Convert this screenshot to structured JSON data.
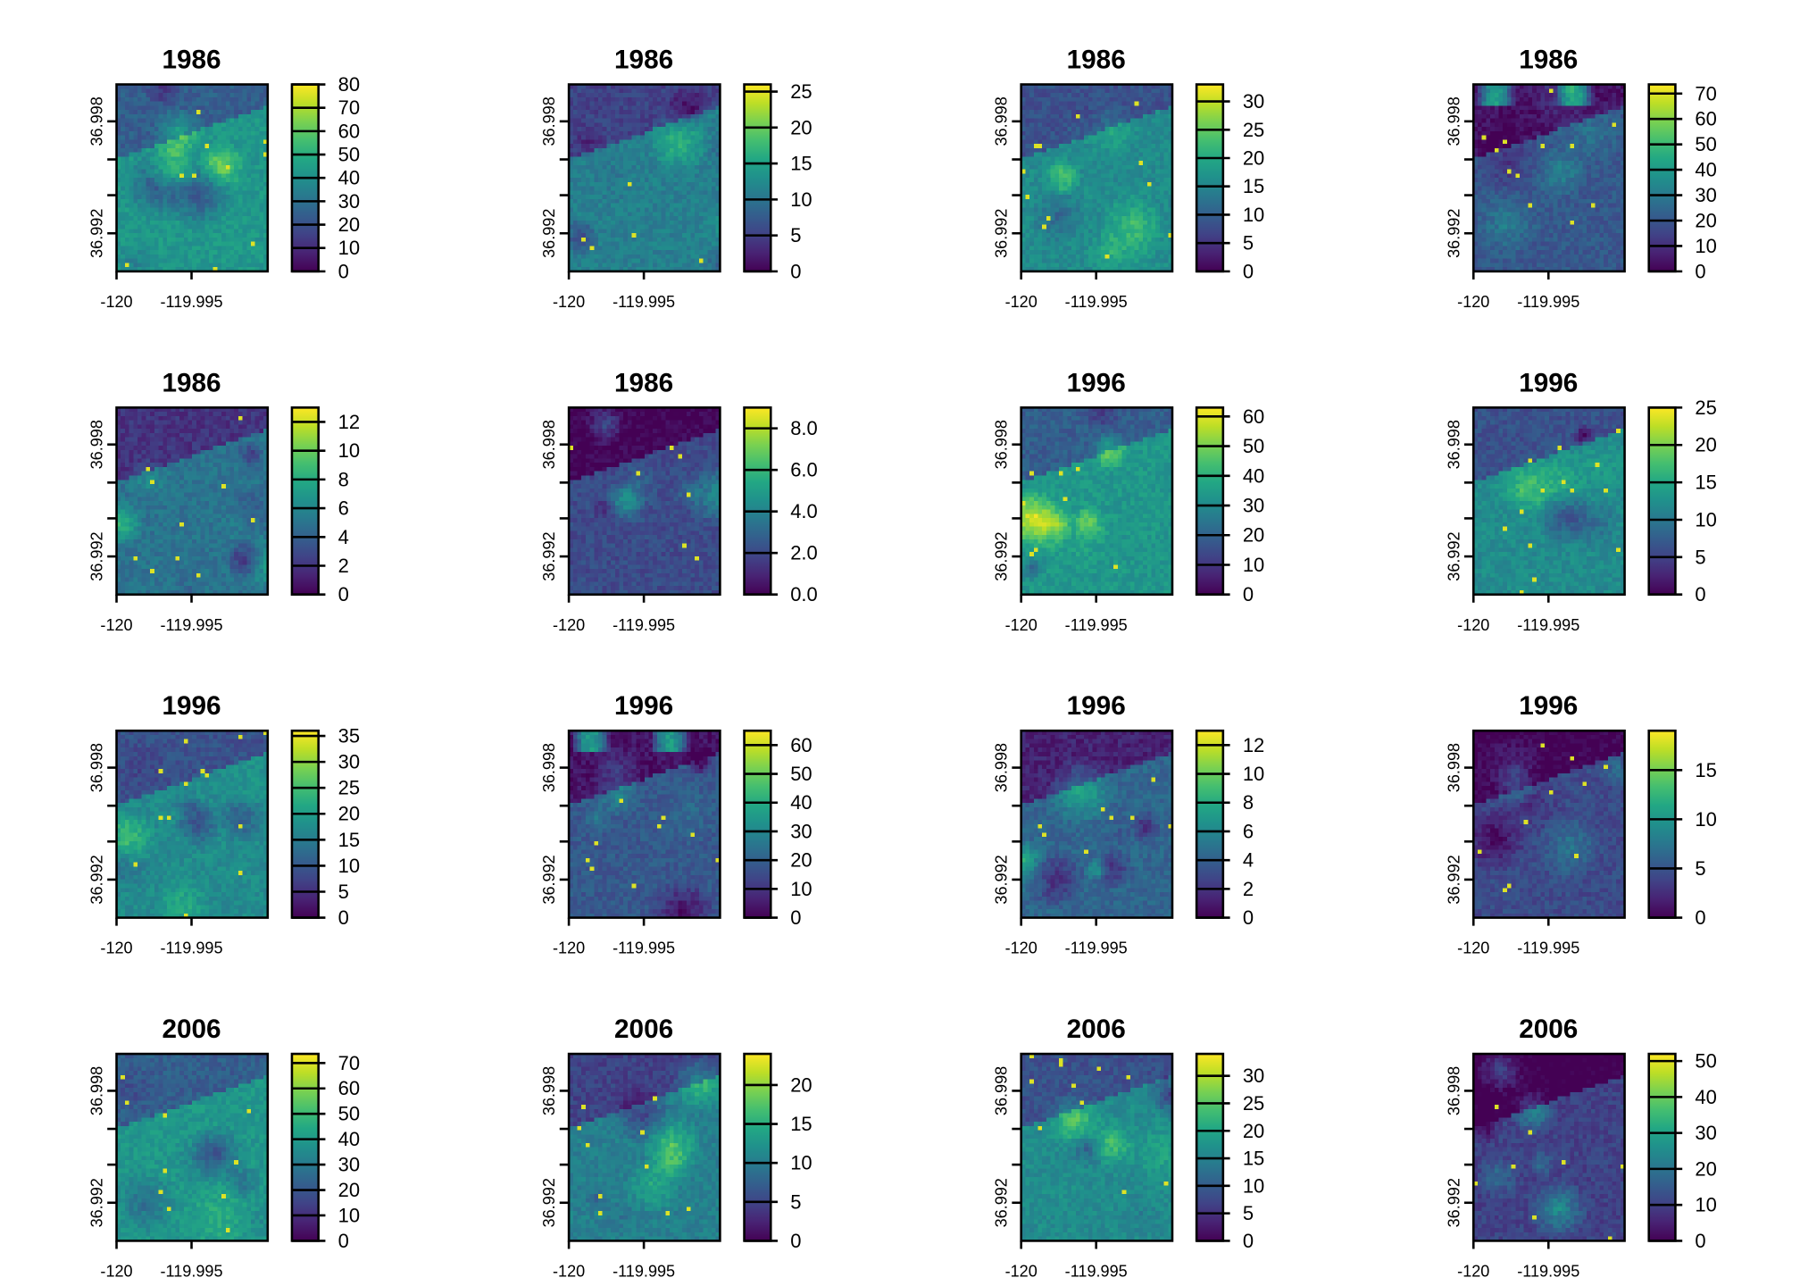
{
  "chart_data": {
    "type": "heatmap",
    "colormap": "viridis",
    "x_axis": {
      "tick_labels": [
        "-120",
        "-119.995"
      ]
    },
    "y_axis": {
      "tick_labels": [
        "36.998",
        "36.992"
      ]
    },
    "panels": [
      {
        "title": "1986",
        "legend": {
          "min": 0,
          "max": 80,
          "ticks": [
            "0",
            "10",
            "20",
            "30",
            "40",
            "50",
            "60",
            "70",
            "80"
          ]
        }
      },
      {
        "title": "1986",
        "legend": {
          "min": 0,
          "max": 26,
          "ticks": [
            "0",
            "5",
            "10",
            "15",
            "20",
            "25"
          ]
        }
      },
      {
        "title": "1986",
        "legend": {
          "min": 0,
          "max": 33,
          "ticks": [
            "0",
            "5",
            "10",
            "15",
            "20",
            "25",
            "30"
          ]
        }
      },
      {
        "title": "1986",
        "legend": {
          "min": 0,
          "max": 73.6,
          "ticks": [
            "0",
            "10",
            "20",
            "30",
            "40",
            "50",
            "60",
            "70"
          ]
        }
      },
      {
        "title": "1986",
        "legend": {
          "min": 0,
          "max": 13,
          "ticks": [
            "0",
            "2",
            "4",
            "6",
            "8",
            "10",
            "12"
          ]
        }
      },
      {
        "title": "1986",
        "legend": {
          "min": 0,
          "max": 9,
          "ticks": [
            "0.0",
            "2.0",
            "4.0",
            "6.0",
            "8.0"
          ]
        }
      },
      {
        "title": "1996",
        "legend": {
          "min": 0,
          "max": 63,
          "ticks": [
            "0",
            "10",
            "20",
            "30",
            "40",
            "50",
            "60"
          ]
        }
      },
      {
        "title": "1996",
        "legend": {
          "min": 0,
          "max": 25,
          "ticks": [
            "0",
            "5",
            "10",
            "15",
            "20",
            "25"
          ]
        }
      },
      {
        "title": "1996",
        "legend": {
          "min": 0,
          "max": 36,
          "ticks": [
            "0",
            "5",
            "10",
            "15",
            "20",
            "25",
            "30",
            "35"
          ]
        }
      },
      {
        "title": "1996",
        "legend": {
          "min": 0,
          "max": 65,
          "ticks": [
            "0",
            "10",
            "20",
            "30",
            "40",
            "50",
            "60"
          ]
        }
      },
      {
        "title": "1996",
        "legend": {
          "min": 0,
          "max": 13,
          "ticks": [
            "0",
            "2",
            "4",
            "6",
            "8",
            "10",
            "12"
          ]
        }
      },
      {
        "title": "1996",
        "legend": {
          "min": 0,
          "max": 19,
          "ticks": [
            "0",
            "5",
            "10",
            "15"
          ]
        }
      },
      {
        "title": "2006",
        "legend": {
          "min": 0,
          "max": 73.6,
          "ticks": [
            "0",
            "10",
            "20",
            "30",
            "40",
            "50",
            "60",
            "70"
          ]
        }
      },
      {
        "title": "2006",
        "legend": {
          "min": 0,
          "max": 24,
          "ticks": [
            "0",
            "5",
            "10",
            "15",
            "20"
          ]
        }
      },
      {
        "title": "2006",
        "legend": {
          "min": 0,
          "max": 34,
          "ticks": [
            "0",
            "5",
            "10",
            "15",
            "20",
            "25",
            "30"
          ]
        }
      },
      {
        "title": "2006",
        "legend": {
          "min": 0,
          "max": 52,
          "ticks": [
            "0",
            "10",
            "20",
            "30",
            "40",
            "50"
          ]
        }
      }
    ]
  }
}
